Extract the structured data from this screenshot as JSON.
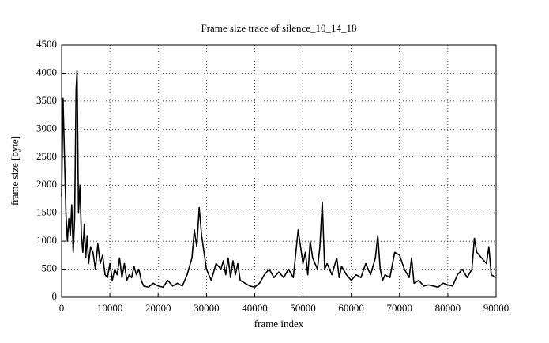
{
  "chart_data": {
    "type": "line",
    "title": "Frame size trace of silence_10_14_18",
    "xlabel": "frame index",
    "ylabel": "frame size [byte]",
    "x": [
      0,
      300,
      600,
      900,
      1200,
      1500,
      1800,
      2100,
      2400,
      2700,
      3000,
      3200,
      3500,
      3800,
      4100,
      4400,
      4700,
      5000,
      5300,
      5600,
      6000,
      6500,
      7000,
      7500,
      8000,
      8500,
      9000,
      9500,
      10000,
      10500,
      11000,
      11500,
      12000,
      12500,
      13000,
      13500,
      14000,
      14500,
      15000,
      15500,
      16000,
      16500,
      17000,
      18000,
      19000,
      20000,
      21000,
      22000,
      23000,
      24000,
      25000,
      26000,
      27000,
      27500,
      28000,
      28500,
      29000,
      29500,
      30000,
      30500,
      31000,
      32000,
      33000,
      33500,
      34000,
      34500,
      35000,
      35500,
      36000,
      36500,
      37000,
      38000,
      39000,
      40000,
      41000,
      42000,
      43000,
      44000,
      45000,
      46000,
      47000,
      48000,
      49000,
      49500,
      50000,
      50500,
      51000,
      51500,
      52000,
      53000,
      53500,
      54000,
      54500,
      55000,
      56000,
      57000,
      57500,
      58000,
      59000,
      60000,
      61000,
      62000,
      63000,
      64000,
      65000,
      65500,
      66000,
      66500,
      67000,
      68000,
      69000,
      70000,
      71000,
      72000,
      72500,
      73000,
      74000,
      75000,
      76000,
      77000,
      78000,
      79000,
      80000,
      81000,
      82000,
      83000,
      84000,
      85000,
      85500,
      86000,
      87000,
      88000,
      88500,
      89000,
      90000
    ],
    "values": [
      1800,
      3550,
      2500,
      1500,
      1000,
      1400,
      1100,
      1650,
      800,
      1400,
      3700,
      4050,
      1500,
      2000,
      1100,
      800,
      1300,
      700,
      1100,
      600,
      900,
      800,
      500,
      950,
      600,
      750,
      400,
      350,
      600,
      300,
      500,
      400,
      700,
      350,
      600,
      300,
      400,
      350,
      550,
      400,
      500,
      300,
      200,
      180,
      250,
      200,
      180,
      300,
      200,
      250,
      200,
      400,
      700,
      1200,
      900,
      1600,
      1100,
      800,
      500,
      400,
      300,
      600,
      500,
      650,
      400,
      700,
      350,
      650,
      400,
      600,
      300,
      250,
      200,
      180,
      250,
      400,
      500,
      350,
      450,
      350,
      500,
      350,
      1200,
      900,
      600,
      800,
      400,
      1000,
      700,
      500,
      900,
      1700,
      500,
      600,
      400,
      700,
      350,
      550,
      400,
      300,
      400,
      350,
      600,
      400,
      700,
      1100,
      500,
      300,
      400,
      350,
      800,
      750,
      500,
      350,
      700,
      250,
      300,
      200,
      220,
      200,
      180,
      250,
      220,
      200,
      400,
      500,
      350,
      500,
      1050,
      800,
      700,
      600,
      900,
      400,
      350
    ],
    "color": "#000000",
    "xlim": [
      0,
      90000
    ],
    "ylim": [
      0,
      4500
    ],
    "xticks": [
      0,
      10000,
      20000,
      30000,
      40000,
      50000,
      60000,
      70000,
      80000,
      90000
    ],
    "yticks": [
      0,
      500,
      1000,
      1500,
      2000,
      2500,
      3000,
      3500,
      4000,
      4500
    ],
    "grid": true
  }
}
